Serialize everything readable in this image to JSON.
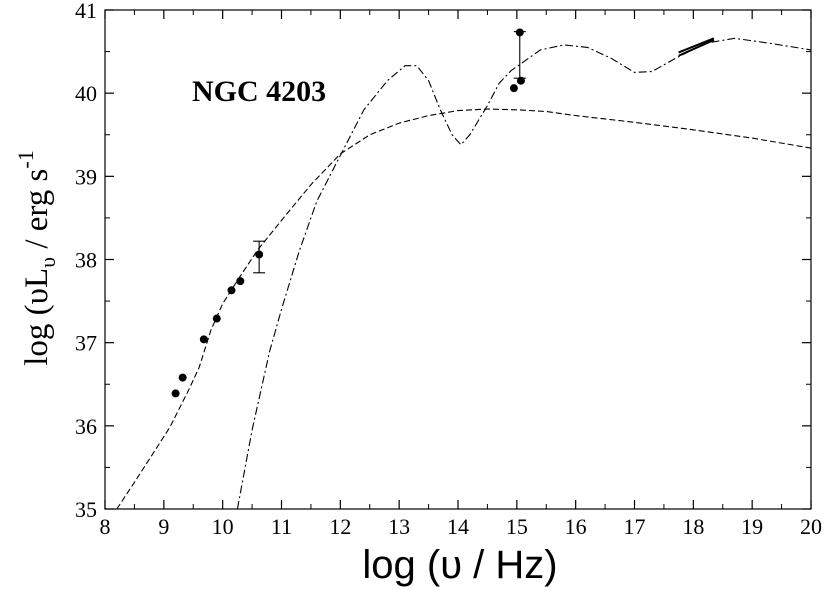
{
  "chart_data": {
    "type": "scatter",
    "title": "",
    "annotation": "NGC 4203",
    "xlabel": "log  (υ  / Hz)",
    "ylabel_parts": {
      "prefix": "log  (",
      "symbol": "υL",
      "subscript": "υ",
      "mid": "  / erg s",
      "superscript": "-1",
      "suffix": ""
    },
    "xlim": [
      8,
      20
    ],
    "ylim": [
      35,
      41
    ],
    "xticks": [
      "8",
      "9",
      "10",
      "11",
      "12",
      "13",
      "14",
      "15",
      "16",
      "17",
      "18",
      "19",
      "20"
    ],
    "yticks": [
      "35",
      "36",
      "37",
      "38",
      "39",
      "40",
      "41"
    ],
    "grid": false,
    "legend": "none",
    "series": [
      {
        "kind": "points",
        "points": [
          [
            9.2,
            36.39
          ],
          [
            9.32,
            36.58
          ],
          [
            9.68,
            37.04
          ],
          [
            9.9,
            37.29
          ],
          [
            10.15,
            37.63
          ],
          [
            10.3,
            37.74
          ],
          [
            10.62,
            38.06
          ],
          [
            14.95,
            40.06
          ],
          [
            15.07,
            40.15
          ],
          [
            15.05,
            40.73
          ]
        ]
      },
      {
        "kind": "errorbars",
        "bars": [
          {
            "x": 10.62,
            "ylow": 37.84,
            "yhigh": 38.22
          },
          {
            "x": 15.05,
            "ylow": 40.18,
            "yhigh": 40.74
          }
        ]
      },
      {
        "kind": "bowtie",
        "x": [
          17.75,
          18.35
        ],
        "y_upper": [
          40.49,
          40.66
        ],
        "y_lower": [
          40.45,
          40.64
        ]
      },
      {
        "kind": "dashed_curve",
        "points": [
          [
            8.2,
            35.0
          ],
          [
            8.5,
            35.32
          ],
          [
            8.8,
            35.65
          ],
          [
            9.1,
            35.98
          ],
          [
            9.4,
            36.4
          ],
          [
            9.6,
            36.7
          ],
          [
            9.8,
            37.15
          ],
          [
            10.0,
            37.47
          ],
          [
            10.3,
            37.8
          ],
          [
            10.6,
            38.12
          ],
          [
            11.0,
            38.47
          ],
          [
            11.5,
            38.9
          ],
          [
            12.0,
            39.27
          ],
          [
            12.5,
            39.5
          ],
          [
            13.0,
            39.64
          ],
          [
            13.5,
            39.73
          ],
          [
            14.0,
            39.79
          ],
          [
            14.5,
            39.81
          ],
          [
            15.0,
            39.8
          ],
          [
            15.5,
            39.78
          ],
          [
            16.0,
            39.73
          ],
          [
            17.0,
            39.65
          ],
          [
            18.0,
            39.56
          ],
          [
            19.0,
            39.46
          ],
          [
            20.0,
            39.34
          ]
        ]
      },
      {
        "kind": "dashdot_curve",
        "points": [
          [
            10.25,
            35.0
          ],
          [
            10.5,
            35.95
          ],
          [
            10.8,
            36.9
          ],
          [
            11.0,
            37.4
          ],
          [
            11.3,
            38.1
          ],
          [
            11.6,
            38.7
          ],
          [
            12.0,
            39.25
          ],
          [
            12.4,
            39.8
          ],
          [
            12.8,
            40.15
          ],
          [
            13.1,
            40.33
          ],
          [
            13.3,
            40.33
          ],
          [
            13.5,
            40.15
          ],
          [
            13.7,
            39.8
          ],
          [
            13.9,
            39.5
          ],
          [
            14.05,
            39.38
          ],
          [
            14.2,
            39.5
          ],
          [
            14.5,
            39.85
          ],
          [
            14.7,
            40.12
          ],
          [
            14.9,
            40.27
          ],
          [
            15.1,
            40.37
          ],
          [
            15.4,
            40.52
          ],
          [
            15.8,
            40.58
          ],
          [
            16.2,
            40.55
          ],
          [
            16.6,
            40.42
          ],
          [
            17.0,
            40.25
          ],
          [
            17.3,
            40.26
          ],
          [
            17.7,
            40.42
          ],
          [
            18.2,
            40.6
          ],
          [
            18.7,
            40.66
          ],
          [
            19.3,
            40.6
          ],
          [
            20.0,
            40.52
          ]
        ]
      }
    ]
  }
}
